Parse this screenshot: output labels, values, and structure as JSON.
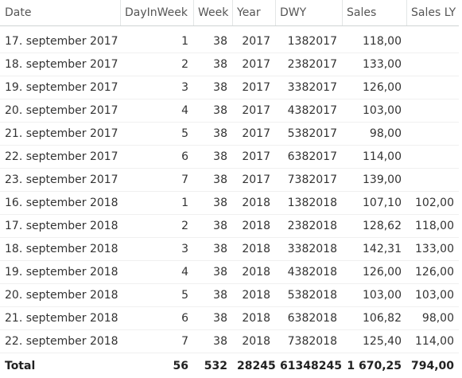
{
  "table": {
    "columns": [
      "Date",
      "DayInWeek",
      "Week",
      "Year",
      "DWY",
      "Sales",
      "Sales LY"
    ],
    "rows": [
      [
        "17. september 2017",
        "1",
        "38",
        "2017",
        "1382017",
        "118,00",
        ""
      ],
      [
        "18. september 2017",
        "2",
        "38",
        "2017",
        "2382017",
        "133,00",
        ""
      ],
      [
        "19. september 2017",
        "3",
        "38",
        "2017",
        "3382017",
        "126,00",
        ""
      ],
      [
        "20. september 2017",
        "4",
        "38",
        "2017",
        "4382017",
        "103,00",
        ""
      ],
      [
        "21. september 2017",
        "5",
        "38",
        "2017",
        "5382017",
        "98,00",
        ""
      ],
      [
        "22. september 2017",
        "6",
        "38",
        "2017",
        "6382017",
        "114,00",
        ""
      ],
      [
        "23. september 2017",
        "7",
        "38",
        "2017",
        "7382017",
        "139,00",
        ""
      ],
      [
        "16. september 2018",
        "1",
        "38",
        "2018",
        "1382018",
        "107,10",
        "102,00"
      ],
      [
        "17. september 2018",
        "2",
        "38",
        "2018",
        "2382018",
        "128,62",
        "118,00"
      ],
      [
        "18. september 2018",
        "3",
        "38",
        "2018",
        "3382018",
        "142,31",
        "133,00"
      ],
      [
        "19. september 2018",
        "4",
        "38",
        "2018",
        "4382018",
        "126,00",
        "126,00"
      ],
      [
        "20. september 2018",
        "5",
        "38",
        "2018",
        "5382018",
        "103,00",
        "103,00"
      ],
      [
        "21. september 2018",
        "6",
        "38",
        "2018",
        "6382018",
        "106,82",
        "98,00"
      ],
      [
        "22. september 2018",
        "7",
        "38",
        "2018",
        "7382018",
        "125,40",
        "114,00"
      ]
    ],
    "total": [
      "Total",
      "56",
      "532",
      "28245",
      "61348245",
      "1 670,25",
      "794,00"
    ]
  }
}
